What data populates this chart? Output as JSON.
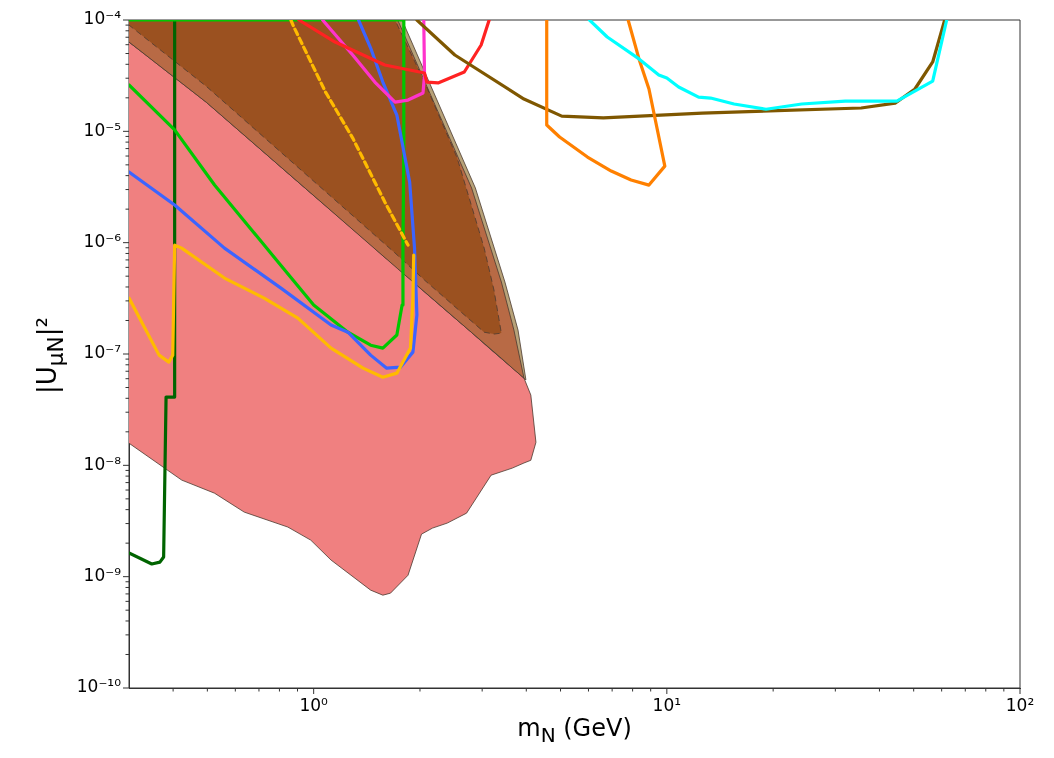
{
  "chart_data": {
    "type": "line",
    "xlabel": "m$_{N}$ (GeV)",
    "ylabel": "|U$_{μN}$|²",
    "log": "xy",
    "xlim": [
      0.3,
      100
    ],
    "ylim": [
      1e-10,
      0.0001
    ],
    "xticks": [
      {
        "value": 0.4,
        "label": null
      },
      {
        "value": 0.5,
        "label": null
      },
      {
        "value": 0.6,
        "label": null
      },
      {
        "value": 0.7,
        "label": null
      },
      {
        "value": 0.8,
        "label": null
      },
      {
        "value": 0.9,
        "label": null
      },
      {
        "value": 1,
        "label": "10⁰"
      },
      {
        "value": 2,
        "label": null
      },
      {
        "value": 3,
        "label": null
      },
      {
        "value": 4,
        "label": null
      },
      {
        "value": 5,
        "label": null
      },
      {
        "value": 6,
        "label": null
      },
      {
        "value": 7,
        "label": null
      },
      {
        "value": 8,
        "label": null
      },
      {
        "value": 9,
        "label": null
      },
      {
        "value": 10,
        "label": "10¹"
      },
      {
        "value": 20,
        "label": null
      },
      {
        "value": 30,
        "label": null
      },
      {
        "value": 40,
        "label": null
      },
      {
        "value": 50,
        "label": null
      },
      {
        "value": 60,
        "label": null
      },
      {
        "value": 70,
        "label": null
      },
      {
        "value": 80,
        "label": null
      },
      {
        "value": 90,
        "label": null
      },
      {
        "value": 100,
        "label": "10²"
      }
    ],
    "yticks": [
      {
        "value": 1e-10,
        "label": "10⁻¹⁰"
      },
      {
        "value": 2e-10,
        "label": null
      },
      {
        "value": 3e-10,
        "label": null
      },
      {
        "value": 4e-10,
        "label": null
      },
      {
        "value": 5e-10,
        "label": null
      },
      {
        "value": 6e-10,
        "label": null
      },
      {
        "value": 7e-10,
        "label": null
      },
      {
        "value": 8e-10,
        "label": null
      },
      {
        "value": 9e-10,
        "label": null
      },
      {
        "value": 1e-09,
        "label": "10⁻⁹"
      },
      {
        "value": 2e-09,
        "label": null
      },
      {
        "value": 3e-09,
        "label": null
      },
      {
        "value": 4e-09,
        "label": null
      },
      {
        "value": 5e-09,
        "label": null
      },
      {
        "value": 6e-09,
        "label": null
      },
      {
        "value": 7e-09,
        "label": null
      },
      {
        "value": 8e-09,
        "label": null
      },
      {
        "value": 9e-09,
        "label": null
      },
      {
        "value": 1e-08,
        "label": "10⁻⁸"
      },
      {
        "value": 2e-08,
        "label": null
      },
      {
        "value": 3e-08,
        "label": null
      },
      {
        "value": 4e-08,
        "label": null
      },
      {
        "value": 5e-08,
        "label": null
      },
      {
        "value": 6e-08,
        "label": null
      },
      {
        "value": 7e-08,
        "label": null
      },
      {
        "value": 8e-08,
        "label": null
      },
      {
        "value": 9e-08,
        "label": null
      },
      {
        "value": 1e-07,
        "label": "10⁻⁷"
      },
      {
        "value": 2e-07,
        "label": null
      },
      {
        "value": 3e-07,
        "label": null
      },
      {
        "value": 4e-07,
        "label": null
      },
      {
        "value": 5e-07,
        "label": null
      },
      {
        "value": 6e-07,
        "label": null
      },
      {
        "value": 7e-07,
        "label": null
      },
      {
        "value": 8e-07,
        "label": null
      },
      {
        "value": 9e-07,
        "label": null
      },
      {
        "value": 1e-06,
        "label": "10⁻⁶"
      },
      {
        "value": 2e-06,
        "label": null
      },
      {
        "value": 3e-06,
        "label": null
      },
      {
        "value": 4e-06,
        "label": null
      },
      {
        "value": 5e-06,
        "label": null
      },
      {
        "value": 6e-06,
        "label": null
      },
      {
        "value": 7e-06,
        "label": null
      },
      {
        "value": 8e-06,
        "label": null
      },
      {
        "value": 9e-06,
        "label": null
      },
      {
        "value": 1e-05,
        "label": "10⁻⁵"
      },
      {
        "value": 2e-05,
        "label": null
      },
      {
        "value": 3e-05,
        "label": null
      },
      {
        "value": 4e-05,
        "label": null
      },
      {
        "value": 5e-05,
        "label": null
      },
      {
        "value": 6e-05,
        "label": null
      },
      {
        "value": 7e-05,
        "label": null
      },
      {
        "value": 8e-05,
        "label": null
      },
      {
        "value": 9e-05,
        "label": null
      },
      {
        "value": 0.0001,
        "label": "10⁻⁴"
      }
    ],
    "series": [
      {
        "type": "area",
        "color": "#f08080",
        "x": [
          0.3,
          0.423,
          0.524,
          0.636,
          0.845,
          0.981,
          1.12,
          1.45,
          1.57,
          1.65,
          1.85,
          2.02,
          2.17,
          2.39,
          2.71,
          3.18,
          3.65,
          3.94,
          4.12,
          4.26,
          4.12,
          3.94,
          3.65,
          3.18,
          2.71,
          2.39,
          2.17,
          2.02,
          1.85,
          1.65,
          1.57,
          1.45,
          1.12,
          0.981,
          0.845,
          0.636,
          0.524,
          0.423,
          0.3
        ],
        "values": [
          6.34e-05,
          2.84e-05,
          1.58e-05,
          9.27e-06,
          4.22e-06,
          2.8e-06,
          1.96e-06,
          9.62e-07,
          7.62e-07,
          6.73e-07,
          4.89e-07,
          3.8e-07,
          3.13e-07,
          2.4e-07,
          1.71e-07,
          1.09e-07,
          7.54e-08,
          6.08e-08,
          4.28e-08,
          1.61e-08,
          1.11e-08,
          1.05e-08,
          9.44e-09,
          8.16e-09,
          3.72e-09,
          3.03e-09,
          2.73e-09,
          2.41e-09,
          1.03e-09,
          7.11e-10,
          6.82e-10,
          7.57e-10,
          1.41e-09,
          2.13e-09,
          2.79e-09,
          3.8e-09,
          5.62e-09,
          7.37e-09,
          1.58e-08
        ]
      },
      {
        "type": "area",
        "color": "#b8a278",
        "x": [
          0.3,
          0.497,
          0.949,
          1.78,
          2.26,
          2.87,
          3.48,
          3.79,
          3.99,
          3.79,
          3.48,
          2.87,
          2.26,
          1.78,
          0.949,
          0.497,
          0.3
        ],
        "values": [
          0.0001,
          0.0001,
          0.0001,
          0.0001,
          1.76e-05,
          3.1e-06,
          4.43e-07,
          1.64e-07,
          5.86e-08,
          6.76e-08,
          8.53e-08,
          1.46e-07,
          2.81e-07,
          5.45e-07,
          3.06e-06,
          1.82e-05,
          6.34e-05
        ]
      },
      {
        "type": "area",
        "color": "#b86a45",
        "x": [
          0.3,
          0.497,
          0.949,
          1.73,
          2.2,
          2.8,
          3.4,
          3.69,
          3.94,
          3.69,
          3.4,
          2.8,
          2.2,
          1.73,
          0.949,
          0.497,
          0.3
        ],
        "values": [
          0.0001,
          0.0001,
          0.0001,
          0.0001,
          1.76e-05,
          3.1e-06,
          4.43e-07,
          1.64e-07,
          6.08e-08,
          7.26e-08,
          9.15e-08,
          1.56e-07,
          3.02e-07,
          5.83e-07,
          3.06e-06,
          1.82e-05,
          6.34e-05
        ]
      },
      {
        "type": "area",
        "color": "#9b5120",
        "line_style": "dashed",
        "x": [
          0.3,
          0.497,
          0.949,
          1.7,
          2.06,
          2.55,
          3.04,
          3.24,
          3.4,
          3.24,
          3.04,
          2.55,
          2.06,
          1.7,
          0.949,
          0.497,
          0.3
        ],
        "values": [
          0.0001,
          0.0001,
          0.0001,
          0.0001,
          2.77e-05,
          5.75e-06,
          8.93e-07,
          3.75e-07,
          1.54e-07,
          1.51e-07,
          1.57e-07,
          2.55e-07,
          4.61e-07,
          8.07e-07,
          4.13e-06,
          2.53e-05,
          9e-05
        ]
      },
      {
        "type": "line",
        "color": "#006400",
        "x": [
          0.3,
          0.348,
          0.367,
          0.376,
          0.382,
          0.404,
          0.404
        ],
        "values": [
          1.63e-09,
          1.3e-09,
          1.35e-09,
          1.5e-09,
          4.1e-08,
          4.1e-08,
          0.0001
        ]
      },
      {
        "type": "line",
        "color": "#00c800",
        "x": [
          0.3,
          0.404,
          0.524,
          0.724,
          1,
          1.25,
          1.45,
          1.57,
          1.72,
          1.78,
          1.79,
          1.8,
          1.8,
          0.3
        ],
        "values": [
          2.61e-05,
          1.03e-05,
          3.3e-06,
          9.51e-07,
          2.75e-07,
          1.57e-07,
          1.2e-07,
          1.13e-07,
          1.48e-07,
          2.75e-07,
          8.93e-07,
          7.08e-06,
          0.0001,
          0.0001
        ]
      },
      {
        "type": "line",
        "color": "#3c64ff",
        "x": [
          0.3,
          0.404,
          0.559,
          0.808,
          1.12,
          1.25,
          1.45,
          1.61,
          1.76,
          1.91,
          1.96,
          1.93,
          1.87,
          1.72,
          1.57,
          1.45,
          1.34
        ],
        "values": [
          4.31e-06,
          2.18e-06,
          8.93e-07,
          3.91e-07,
          1.82e-07,
          1.57e-07,
          9.77e-08,
          7.46e-08,
          7.62e-08,
          1.04e-07,
          2.24e-07,
          8.93e-07,
          3.5e-06,
          1.4e-05,
          2.77e-05,
          5.6e-05,
          0.0001
        ]
      },
      {
        "type": "line",
        "color": "#ffbb00",
        "x": [
          0.3,
          0.365,
          0.389,
          0.399,
          0.404,
          0.423,
          0.559,
          0.724,
          0.902,
          1.12,
          1.38,
          1.57,
          1.72,
          1.88,
          1.91,
          1.92
        ],
        "values": [
          3.18e-07,
          9.77e-08,
          8.45e-08,
          9.77e-08,
          9.51e-07,
          8.93e-07,
          4.81e-07,
          3.18e-07,
          2.1e-07,
          1.13e-07,
          7.46e-08,
          6.19e-08,
          6.73e-08,
          1.13e-07,
          3.18e-07,
          7.75e-07
        ]
      },
      {
        "type": "line",
        "color": "#ffbb00",
        "line_style": "dashed",
        "x": [
          0.862,
          0.879,
          1.08,
          1.29,
          1.59,
          1.85
        ],
        "values": [
          0.0001,
          8.65e-05,
          2.26e-05,
          8.7e-06,
          2.32e-06,
          9.51e-07
        ]
      },
      {
        "type": "line",
        "color": "#ff33cc",
        "x": [
          1.06,
          1.29,
          1.49,
          1.7,
          1.85,
          2.04,
          2.06,
          2.05
        ],
        "values": [
          0.0001,
          4.85e-05,
          2.77e-05,
          1.83e-05,
          1.91e-05,
          2.21e-05,
          3.21e-05,
          0.0001
        ]
      },
      {
        "type": "line",
        "color": "#ff2222",
        "x": [
          0.908,
          1.15,
          1.59,
          2.06,
          2.09,
          2.25,
          2.67,
          2.98,
          3.14
        ],
        "values": [
          0.0001,
          6.34e-05,
          3.94e-05,
          3.34e-05,
          2.77e-05,
          2.72e-05,
          3.41e-05,
          5.96e-05,
          0.0001
        ]
      },
      {
        "type": "line",
        "color": "#7f5700",
        "x": [
          1.96,
          2.51,
          3.94,
          5.04,
          6.61,
          12.6,
          35.5,
          44.3,
          50.4,
          56.6,
          61.2
        ],
        "values": [
          0.0001,
          4.85e-05,
          1.95e-05,
          1.37e-05,
          1.32e-05,
          1.46e-05,
          1.62e-05,
          1.79e-05,
          2.4e-05,
          4.2e-05,
          0.0001
        ]
      },
      {
        "type": "line",
        "color": "#ff8000",
        "x": [
          4.57,
          4.57,
          4.97,
          5.96,
          6.96,
          7.92,
          8.9,
          9.87,
          8.9,
          8.34,
          7.77
        ],
        "values": [
          0.0001,
          1.14e-05,
          8.9e-06,
          5.88e-06,
          4.4e-06,
          3.65e-06,
          3.29e-06,
          4.87e-06,
          2.4e-05,
          4.47e-05,
          0.0001
        ]
      },
      {
        "type": "line",
        "color": "#00ffff",
        "x": [
          6.04,
          6.78,
          8.34,
          9.49,
          10,
          10.8,
          12.3,
          13.3,
          15.5,
          19.1,
          24.1,
          32,
          44.8,
          56.6,
          62
        ],
        "values": [
          0.0001,
          7.04e-05,
          4.47e-05,
          3.21e-05,
          3.01e-05,
          2.5e-05,
          2.03e-05,
          1.99e-05,
          1.76e-05,
          1.58e-05,
          1.76e-05,
          1.87e-05,
          1.87e-05,
          2.83e-05,
          0.0001
        ]
      }
    ]
  }
}
